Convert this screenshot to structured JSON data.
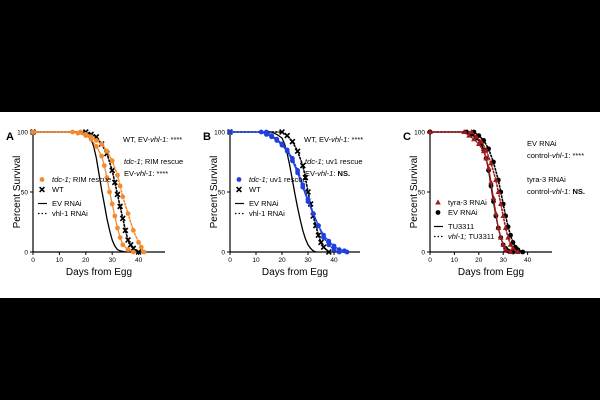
{
  "chart_data": [
    {
      "panel_label": "A",
      "type": "line",
      "title": "",
      "xlabel": "Days from Egg",
      "ylabel": "Percent Survival",
      "xlim": [
        0,
        50
      ],
      "ylim": [
        0,
        100
      ],
      "xticks": [
        "0",
        "10",
        "20",
        "30",
        "40"
      ],
      "yticks": [
        "0",
        "50",
        "100"
      ],
      "grid": false,
      "legend_position": "left",
      "series": [
        {
          "name": "WT / EV RNAi",
          "color": "#000000",
          "style": "solid",
          "marker": "none",
          "x": [
            0,
            17,
            19,
            21,
            22,
            23,
            24,
            25,
            26,
            27,
            28,
            29,
            30,
            31,
            32,
            33,
            35
          ],
          "y": [
            100,
            100,
            99,
            97,
            94,
            88,
            78,
            65,
            52,
            40,
            28,
            18,
            10,
            5,
            2,
            1,
            0
          ]
        },
        {
          "name": "WT / vhl-1 RNAi",
          "color": "#000000",
          "style": "dotted",
          "marker": "x",
          "x": [
            0,
            20,
            22,
            24,
            26,
            28,
            30,
            31,
            32,
            33,
            34,
            35,
            36,
            37,
            38,
            40
          ],
          "y": [
            100,
            100,
            98,
            96,
            90,
            82,
            68,
            58,
            48,
            38,
            28,
            18,
            10,
            6,
            3,
            0
          ]
        },
        {
          "name": "tdc-1; RIM rescue / EV RNAi",
          "color": "#f28a30",
          "style": "solid",
          "marker": "circle",
          "x": [
            0,
            15,
            17,
            20,
            22,
            24,
            26,
            27,
            28,
            29,
            30,
            31,
            32,
            33,
            34,
            36,
            38
          ],
          "y": [
            100,
            100,
            99,
            97,
            94,
            88,
            80,
            72,
            62,
            50,
            40,
            30,
            20,
            12,
            6,
            2,
            0
          ]
        },
        {
          "name": "tdc-1; RIM rescue / vhl-1 RNAi",
          "color": "#f28a30",
          "style": "dotted",
          "marker": "circle",
          "x": [
            0,
            18,
            20,
            22,
            24,
            26,
            28,
            30,
            32,
            33,
            34,
            36,
            38,
            40,
            41,
            42
          ],
          "y": [
            100,
            100,
            98,
            96,
            93,
            90,
            84,
            76,
            64,
            55,
            46,
            32,
            18,
            8,
            4,
            0
          ]
        }
      ],
      "legend": [
        {
          "label_italic": "tdc-1;",
          "label": "RIM rescue",
          "marker": "circle",
          "color": "#f28a30"
        },
        {
          "label": "WT",
          "marker": "x",
          "color": "#000000"
        },
        {
          "label": "EV RNAi",
          "style": "solid"
        },
        {
          "label": "vhl-1 RNAi",
          "style": "dotted"
        }
      ],
      "annotations": [
        {
          "parts": [
            {
              "t": "WT, EV-",
              "i": false
            },
            {
              "t": "vhl-1:",
              "i": true
            },
            {
              "t": " ****",
              "i": false
            }
          ]
        },
        {
          "parts": [
            {
              "t": "tdc-1",
              "i": true
            },
            {
              "t": "; RIM rescue",
              "i": false
            }
          ]
        },
        {
          "parts": [
            {
              "t": "EV-",
              "i": false
            },
            {
              "t": "vhl-1",
              "i": true
            },
            {
              "t": ": ****",
              "i": false
            }
          ]
        }
      ]
    },
    {
      "panel_label": "B",
      "type": "line",
      "title": "",
      "xlabel": "Days from Egg",
      "ylabel": "Percent Survival",
      "xlim": [
        0,
        50
      ],
      "ylim": [
        0,
        100
      ],
      "xticks": [
        "0",
        "10",
        "20",
        "30",
        "40"
      ],
      "yticks": [
        "0",
        "50",
        "100"
      ],
      "grid": false,
      "legend_position": "left",
      "series": [
        {
          "name": "WT / EV RNAi",
          "color": "#000000",
          "style": "solid",
          "marker": "none",
          "x": [
            0,
            16,
            18,
            20,
            21,
            22,
            23,
            24,
            25,
            26,
            27,
            28,
            29,
            30,
            31,
            32,
            33
          ],
          "y": [
            100,
            100,
            98,
            95,
            90,
            82,
            72,
            60,
            48,
            37,
            27,
            18,
            11,
            6,
            3,
            1,
            0
          ]
        },
        {
          "name": "WT / vhl-1 RNAi",
          "color": "#000000",
          "style": "dotted",
          "marker": "x",
          "x": [
            0,
            20,
            22,
            24,
            26,
            28,
            29,
            30,
            31,
            32,
            33,
            34,
            35,
            36,
            38
          ],
          "y": [
            100,
            100,
            97,
            92,
            84,
            72,
            62,
            50,
            40,
            30,
            22,
            14,
            8,
            4,
            0
          ]
        },
        {
          "name": "tdc-1; uv1 rescue / EV RNAi",
          "color": "#1f3fe0",
          "style": "solid",
          "marker": "circle",
          "x": [
            0,
            12,
            14,
            16,
            18,
            20,
            22,
            24,
            26,
            28,
            30,
            32,
            34,
            36,
            38,
            40,
            42,
            44,
            45
          ],
          "y": [
            100,
            100,
            98,
            96,
            93,
            89,
            84,
            76,
            66,
            54,
            42,
            32,
            22,
            14,
            9,
            5,
            2,
            1,
            0
          ]
        },
        {
          "name": "tdc-1; uv1 rescue / vhl-1 RNAi",
          "color": "#1f3fe0",
          "style": "dotted",
          "marker": "circle",
          "x": [
            0,
            14,
            16,
            18,
            20,
            22,
            24,
            26,
            28,
            30,
            32,
            34,
            36,
            38,
            40,
            42
          ],
          "y": [
            100,
            100,
            97,
            94,
            90,
            85,
            78,
            68,
            56,
            44,
            32,
            22,
            12,
            6,
            2,
            0
          ]
        }
      ],
      "legend": [
        {
          "label_italic": "tdc-1;",
          "label": "uv1 rescue",
          "marker": "circle",
          "color": "#1f3fe0"
        },
        {
          "label": "WT",
          "marker": "x",
          "color": "#000000"
        },
        {
          "label": "EV RNAi",
          "style": "solid"
        },
        {
          "label": "vhl-1 RNAi",
          "style": "dotted"
        }
      ],
      "annotations": [
        {
          "parts": [
            {
              "t": "WT, EV-",
              "i": false
            },
            {
              "t": "vhl-1:",
              "i": true
            },
            {
              "t": " ****",
              "i": false
            }
          ]
        },
        {
          "parts": [
            {
              "t": "tdc-1",
              "i": true
            },
            {
              "t": "; uv1 rescue",
              "i": false
            }
          ]
        },
        {
          "parts": [
            {
              "t": "EV-",
              "i": false
            },
            {
              "t": "vhl-1",
              "i": true
            },
            {
              "t": ": ",
              "i": false
            },
            {
              "t": "NS.",
              "i": false,
              "b": true
            }
          ]
        }
      ]
    },
    {
      "panel_label": "C",
      "type": "line",
      "title": "",
      "xlabel": "Days from Egg",
      "ylabel": "Percent Survival",
      "xlim": [
        0,
        50
      ],
      "ylim": [
        0,
        100
      ],
      "xticks": [
        "0",
        "10",
        "20",
        "30",
        "40"
      ],
      "yticks": [
        "0",
        "50",
        "100"
      ],
      "grid": false,
      "legend_position": "left",
      "series": [
        {
          "name": "TU3311 / EV RNAi",
          "color": "#000000",
          "style": "solid",
          "marker": "circle",
          "x": [
            0,
            15,
            17,
            19,
            21,
            22,
            23,
            24,
            25,
            26,
            27,
            28,
            29,
            30,
            31,
            32,
            34
          ],
          "y": [
            100,
            100,
            98,
            95,
            90,
            85,
            78,
            68,
            55,
            42,
            30,
            20,
            12,
            6,
            3,
            1,
            0
          ]
        },
        {
          "name": "TU3311 / tyra-3 RNAi",
          "color": "#a01c1c",
          "style": "solid",
          "marker": "triangle",
          "x": [
            0,
            14,
            16,
            18,
            20,
            22,
            23,
            24,
            25,
            26,
            27,
            28,
            29,
            30,
            31,
            33
          ],
          "y": [
            100,
            100,
            97,
            94,
            90,
            84,
            78,
            70,
            58,
            45,
            32,
            20,
            12,
            6,
            2,
            0
          ]
        },
        {
          "name": "vhl-1; TU3311 / EV RNAi",
          "color": "#000000",
          "style": "dotted",
          "marker": "circle",
          "x": [
            0,
            18,
            20,
            22,
            24,
            26,
            28,
            29,
            30,
            31,
            32,
            33,
            34,
            35,
            36,
            38
          ],
          "y": [
            100,
            100,
            97,
            93,
            86,
            75,
            60,
            50,
            40,
            30,
            21,
            14,
            8,
            4,
            2,
            0
          ]
        },
        {
          "name": "vhl-1; TU3311 / tyra-3 RNAi",
          "color": "#a01c1c",
          "style": "dotted",
          "marker": "triangle",
          "x": [
            0,
            17,
            19,
            21,
            23,
            25,
            27,
            28,
            29,
            30,
            31,
            32,
            33,
            34,
            36
          ],
          "y": [
            100,
            100,
            96,
            92,
            85,
            74,
            60,
            50,
            40,
            30,
            20,
            12,
            6,
            3,
            0
          ]
        }
      ],
      "legend": [
        {
          "label": "tyra-3 RNAi",
          "marker": "triangle",
          "color": "#a01c1c"
        },
        {
          "label": "EV RNAi",
          "marker": "circle",
          "color": "#000000"
        },
        {
          "label": "TU3311",
          "style": "solid"
        },
        {
          "label_italic": "vhl-1;",
          "label": "TU3311",
          "style": "dotted"
        }
      ],
      "annotations": [
        {
          "parts": [
            {
              "t": "EV RNAi",
              "i": false
            }
          ]
        },
        {
          "parts": [
            {
              "t": "control-",
              "i": false
            },
            {
              "t": "vhl-1",
              "i": true
            },
            {
              "t": ": ****",
              "i": false
            }
          ]
        },
        {
          "parts": [
            {
              "t": "tyra-3 RNAi",
              "i": false
            }
          ]
        },
        {
          "parts": [
            {
              "t": "control-",
              "i": false
            },
            {
              "t": "vhl-1",
              "i": true
            },
            {
              "t": ": ",
              "i": false
            },
            {
              "t": "NS.",
              "i": false,
              "b": true
            }
          ]
        }
      ]
    }
  ]
}
